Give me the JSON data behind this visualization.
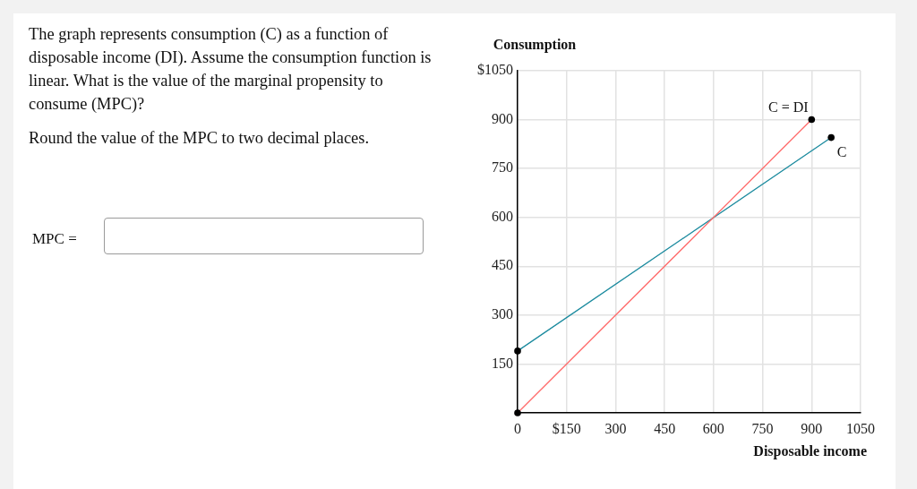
{
  "chart_data": {
    "type": "line",
    "xlabel": "Disposable income",
    "ylabel": "Consumption",
    "annotations": [
      "The graph represents consumption (C) as a function of disposable income (DI). Assume the consumption function is linear. What is the value of the marginal propensity to consume (MPC)?",
      "Round the value of the MPC to two decimal places.",
      "MPC ="
    ],
    "series": [
      {
        "name": "C = DI",
        "color": "#ff6b6b",
        "x": [
          0,
          900
        ],
        "values": [
          0,
          900
        ]
      },
      {
        "name": "C",
        "color": "#1a8a9e",
        "x": [
          0,
          960
        ],
        "values": [
          190,
          845
        ]
      }
    ],
    "xlim": [
      0,
      1050
    ],
    "xticks": [
      {
        "value": 0,
        "label": "0"
      },
      {
        "value": 150,
        "label": "$150"
      },
      300,
      450,
      600,
      750,
      900,
      1050
    ],
    "ylim": [
      0,
      1050
    ],
    "yticks": [
      {
        "value": 0,
        "label": null
      },
      150,
      300,
      450,
      600,
      750,
      900,
      {
        "value": 1050,
        "label": "$1050"
      }
    ],
    "grid": true,
    "marker": "circle",
    "line_style": "solid"
  }
}
